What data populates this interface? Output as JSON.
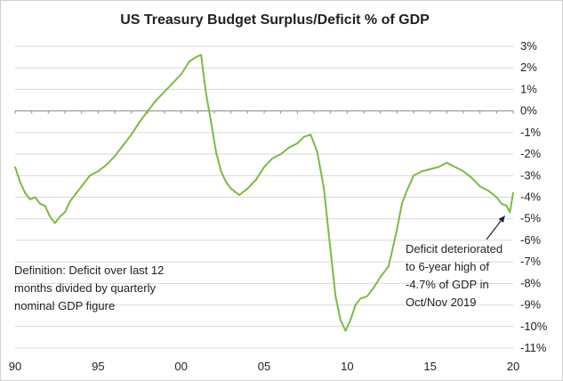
{
  "chart_data": {
    "type": "line",
    "title": "US Treasury Budget Surplus/Deficit % of GDP",
    "xlabel": "",
    "ylabel": "",
    "xlim": [
      1990,
      2020
    ],
    "ylim": [
      -11,
      3
    ],
    "x_tick_labels": [
      "90",
      "95",
      "00",
      "05",
      "10",
      "15",
      "20"
    ],
    "x_ticks": [
      1990,
      1995,
      2000,
      2005,
      2010,
      2015,
      2020
    ],
    "y_ticks": [
      3,
      2,
      1,
      0,
      -1,
      -2,
      -3,
      -4,
      -5,
      -6,
      -7,
      -8,
      -9,
      -10,
      -11
    ],
    "y_tick_labels": [
      "3%",
      "2%",
      "1%",
      "0%",
      "-1%",
      "-2%",
      "-3%",
      "-4%",
      "-5%",
      "-6%",
      "-7%",
      "-8%",
      "-9%",
      "-10%",
      "-11%"
    ],
    "grid": true,
    "line_color": "#7dbb42",
    "series": [
      {
        "x": [
          1990.0,
          1990.3,
          1990.6,
          1990.9,
          1991.2,
          1991.5,
          1991.8,
          1992.1,
          1992.4,
          1992.7,
          1993.0,
          1993.3,
          1993.6,
          1994.0,
          1994.5,
          1995.0,
          1995.5,
          1996.0,
          1996.5,
          1997.0,
          1997.5,
          1998.0,
          1998.5,
          1999.0,
          1999.5,
          2000.0,
          2000.5,
          2000.9,
          2001.2,
          2001.5,
          2001.8,
          2002.1,
          2002.4,
          2002.7,
          2003.0,
          2003.5,
          2004.0,
          2004.5,
          2005.0,
          2005.5,
          2006.0,
          2006.5,
          2007.0,
          2007.4,
          2007.8,
          2008.2,
          2008.6,
          2009.0,
          2009.3,
          2009.6,
          2009.9,
          2010.2,
          2010.5,
          2010.8,
          2011.2,
          2011.6,
          2012.0,
          2012.5,
          2013.0,
          2013.3,
          2013.6,
          2014.0,
          2014.5,
          2015.0,
          2015.5,
          2016.0,
          2016.5,
          2017.0,
          2017.5,
          2018.0,
          2018.5,
          2019.0,
          2019.3,
          2019.6,
          2019.8,
          2020.0
        ],
        "values": [
          -2.6,
          -3.3,
          -3.8,
          -4.1,
          -4.0,
          -4.3,
          -4.4,
          -4.9,
          -5.2,
          -4.9,
          -4.7,
          -4.2,
          -3.9,
          -3.5,
          -3.0,
          -2.8,
          -2.5,
          -2.1,
          -1.6,
          -1.1,
          -0.5,
          0.0,
          0.5,
          0.9,
          1.3,
          1.7,
          2.3,
          2.5,
          2.6,
          0.8,
          -0.5,
          -1.9,
          -2.8,
          -3.3,
          -3.6,
          -3.9,
          -3.6,
          -3.2,
          -2.6,
          -2.2,
          -2.0,
          -1.7,
          -1.5,
          -1.2,
          -1.1,
          -1.9,
          -3.6,
          -6.5,
          -8.6,
          -9.7,
          -10.2,
          -9.7,
          -9.0,
          -8.7,
          -8.6,
          -8.2,
          -7.7,
          -7.2,
          -5.5,
          -4.3,
          -3.7,
          -3.0,
          -2.8,
          -2.7,
          -2.6,
          -2.4,
          -2.6,
          -2.8,
          -3.1,
          -3.5,
          -3.7,
          -4.0,
          -4.3,
          -4.4,
          -4.7,
          -3.8
        ]
      }
    ],
    "annotations": [
      {
        "lines": [
          "Deficit deteriorated",
          "to 6-year high of",
          "-4.7% of GDP in",
          "Oct/Nov 2019"
        ],
        "arrow_to": {
          "x": 2019.6,
          "y": -4.7
        }
      },
      {
        "lines": [
          "Definition:  Deficit over last 12",
          "months divided by quarterly",
          "nominal GDP figure"
        ]
      }
    ]
  }
}
